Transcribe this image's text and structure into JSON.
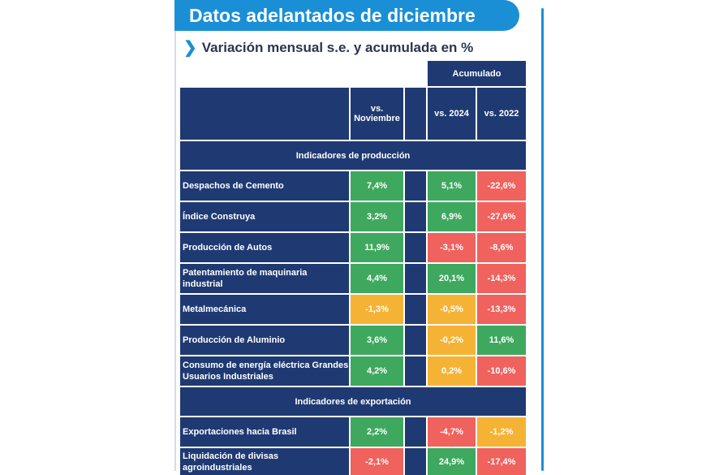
{
  "title": "Datos adelantados de diciembre",
  "subtitle": "Variación mensual s.e. y acumulada en %",
  "header": {
    "group": "Acumulado",
    "col1": "vs. Noviembre",
    "col2": "vs. 2024",
    "col3": "vs. 2022"
  },
  "colors": {
    "green": "#3fa85f",
    "red": "#f0625e",
    "yellow": "#f5b335",
    "navy": "#1f3a73",
    "accent": "#1a8fd6"
  },
  "sections": [
    {
      "title": "Indicadores de producción",
      "rows": [
        {
          "label": "Despachos de Cemento",
          "values": [
            "7,4%",
            "5,1%",
            "-22,6%"
          ],
          "status": [
            "g",
            "g",
            "r"
          ]
        },
        {
          "label": "Índice Construya",
          "values": [
            "3,2%",
            "6,9%",
            "-27,6%"
          ],
          "status": [
            "g",
            "g",
            "r"
          ]
        },
        {
          "label": "Producción de Autos",
          "values": [
            "11,9%",
            "-3,1%",
            "-8,6%"
          ],
          "status": [
            "g",
            "r",
            "r"
          ]
        },
        {
          "label": "Patentamiento de maquinaria industrial",
          "values": [
            "4,4%",
            "20,1%",
            "-14,3%"
          ],
          "status": [
            "g",
            "g",
            "r"
          ]
        },
        {
          "label": "Metalmecánica",
          "values": [
            "-1,3%",
            "-0,5%",
            "-13,3%"
          ],
          "status": [
            "y",
            "y",
            "r"
          ]
        },
        {
          "label": "Producción de Aluminio",
          "values": [
            "3,6%",
            "-0,2%",
            "11,6%"
          ],
          "status": [
            "g",
            "y",
            "g"
          ]
        },
        {
          "label": "Consumo de energía eléctrica Grandes Usuarios Industriales",
          "values": [
            "4,2%",
            "0,2%",
            "-10,6%"
          ],
          "status": [
            "g",
            "y",
            "r"
          ]
        }
      ]
    },
    {
      "title": "Indicadores de exportación",
      "rows": [
        {
          "label": "Exportaciones hacia Brasil",
          "values": [
            "2,2%",
            "-4,7%",
            "-1,2%"
          ],
          "status": [
            "g",
            "r",
            "y"
          ]
        },
        {
          "label": "Liquidación de divisas agroindustriales",
          "values": [
            "-2,1%",
            "24,9%",
            "-17,4%"
          ],
          "status": [
            "r",
            "g",
            "r"
          ]
        }
      ]
    }
  ]
}
